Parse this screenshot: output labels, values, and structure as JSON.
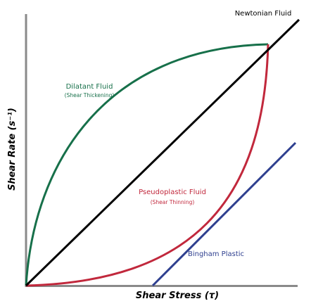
{
  "axes": {
    "x_label": "Shear Stress (τ)",
    "y_label": "Shear Rate (s⁻¹)"
  },
  "curves": {
    "newtonian": {
      "label": "Newtonian Fluid"
    },
    "dilatant": {
      "label": "Dilatant Fluid",
      "note": "(Shear Thickening)"
    },
    "pseudoplastic": {
      "label": "Pseudoplastic Fluid",
      "note": "(Shear Thinning)"
    },
    "bingham": {
      "label": "Bingham Plastic"
    }
  }
}
